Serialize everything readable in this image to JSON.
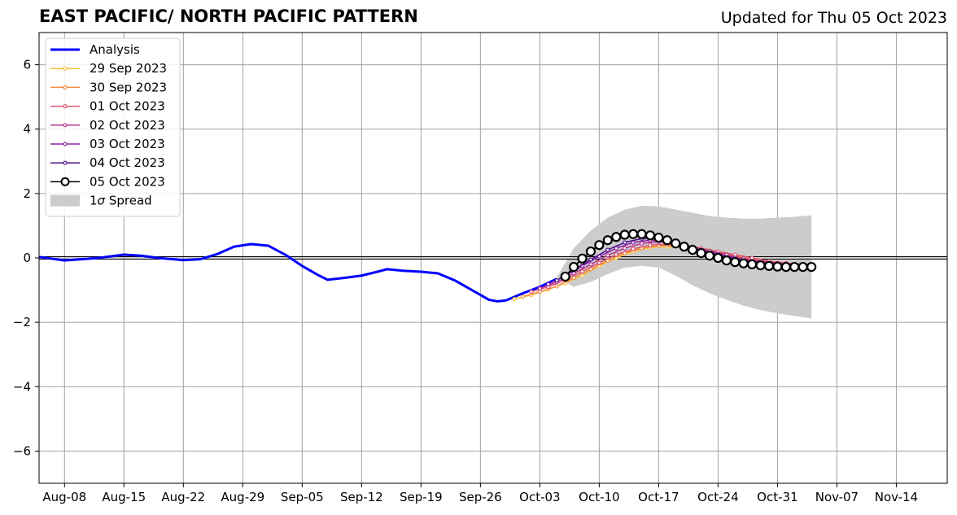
{
  "title": "EAST PACIFIC/ NORTH PACIFIC PATTERN",
  "updated": "Updated for Thu 05 Oct 2023",
  "chart_data": {
    "type": "line",
    "title": "EAST PACIFIC/ NORTH PACIFIC PATTERN",
    "xlabel": "",
    "ylabel": "",
    "x_range": [
      "2023-08-05",
      "2023-11-20"
    ],
    "ylim": [
      -7,
      7
    ],
    "x_ticks": [
      "Aug-08",
      "Aug-15",
      "Aug-22",
      "Aug-29",
      "Sep-05",
      "Sep-12",
      "Sep-19",
      "Sep-26",
      "Oct-03",
      "Oct-10",
      "Oct-17",
      "Oct-24",
      "Oct-31",
      "Nov-07",
      "Nov-14"
    ],
    "x_tick_dates": [
      "2023-08-08",
      "2023-08-15",
      "2023-08-22",
      "2023-08-29",
      "2023-09-05",
      "2023-09-12",
      "2023-09-19",
      "2023-09-26",
      "2023-10-03",
      "2023-10-10",
      "2023-10-17",
      "2023-10-24",
      "2023-10-31",
      "2023-11-07",
      "2023-11-14"
    ],
    "y_ticks": [
      6,
      4,
      2,
      0,
      -2,
      -4,
      -6
    ],
    "y_tick_labels": [
      "6",
      "4",
      "2",
      "0",
      "−2",
      "−4",
      "−6"
    ],
    "grid": true,
    "legend_position": "top-left",
    "series": [
      {
        "name": "Analysis",
        "color": "#0000ff",
        "marker": "none",
        "x": [
          "2023-08-05",
          "2023-08-08",
          "2023-08-10",
          "2023-08-12",
          "2023-08-15",
          "2023-08-17",
          "2023-08-19",
          "2023-08-22",
          "2023-08-24",
          "2023-08-26",
          "2023-08-28",
          "2023-08-30",
          "2023-09-01",
          "2023-09-03",
          "2023-09-05",
          "2023-09-07",
          "2023-09-08",
          "2023-09-10",
          "2023-09-12",
          "2023-09-14",
          "2023-09-15",
          "2023-09-17",
          "2023-09-19",
          "2023-09-21",
          "2023-09-23",
          "2023-09-25",
          "2023-09-27",
          "2023-09-28",
          "2023-09-29",
          "2023-10-01",
          "2023-10-03",
          "2023-10-05"
        ],
        "values": [
          0.03,
          -0.08,
          -0.04,
          0.0,
          0.1,
          0.07,
          0.0,
          -0.07,
          -0.04,
          0.12,
          0.35,
          0.43,
          0.38,
          0.1,
          -0.25,
          -0.55,
          -0.68,
          -0.62,
          -0.55,
          -0.42,
          -0.35,
          -0.4,
          -0.43,
          -0.48,
          -0.7,
          -1.0,
          -1.3,
          -1.35,
          -1.32,
          -1.1,
          -0.9,
          -0.65
        ]
      },
      {
        "name": "29 Sep 2023",
        "color": "#fbbd3a",
        "marker": "small",
        "x": [
          "2023-09-30",
          "2023-10-02",
          "2023-10-04",
          "2023-10-06",
          "2023-10-08",
          "2023-10-10",
          "2023-10-12",
          "2023-10-14",
          "2023-10-16",
          "2023-10-18",
          "2023-10-20",
          "2023-10-22",
          "2023-10-24",
          "2023-10-26",
          "2023-10-28",
          "2023-10-30",
          "2023-11-01"
        ],
        "values": [
          -1.28,
          -1.15,
          -0.98,
          -0.78,
          -0.55,
          -0.25,
          0.0,
          0.2,
          0.32,
          0.35,
          0.32,
          0.25,
          0.15,
          0.05,
          -0.05,
          -0.12,
          -0.18
        ]
      },
      {
        "name": "30 Sep 2023",
        "color": "#f58a3b",
        "marker": "small",
        "x": [
          "2023-10-01",
          "2023-10-03",
          "2023-10-05",
          "2023-10-07",
          "2023-10-09",
          "2023-10-11",
          "2023-10-13",
          "2023-10-15",
          "2023-10-17",
          "2023-10-19",
          "2023-10-21",
          "2023-10-23",
          "2023-10-25",
          "2023-10-27",
          "2023-10-29",
          "2023-10-31",
          "2023-11-02"
        ],
        "values": [
          -1.2,
          -1.05,
          -0.88,
          -0.62,
          -0.35,
          -0.08,
          0.15,
          0.3,
          0.38,
          0.38,
          0.32,
          0.23,
          0.12,
          0.02,
          -0.08,
          -0.15,
          -0.2
        ]
      },
      {
        "name": "01 Oct 2023",
        "color": "#e05470",
        "marker": "small",
        "x": [
          "2023-10-02",
          "2023-10-04",
          "2023-10-06",
          "2023-10-08",
          "2023-10-10",
          "2023-10-12",
          "2023-10-14",
          "2023-10-16",
          "2023-10-18",
          "2023-10-20",
          "2023-10-22",
          "2023-10-24",
          "2023-10-26",
          "2023-10-28",
          "2023-10-30",
          "2023-11-01",
          "2023-11-03"
        ],
        "values": [
          -1.05,
          -0.9,
          -0.68,
          -0.42,
          -0.15,
          0.1,
          0.28,
          0.4,
          0.42,
          0.38,
          0.3,
          0.2,
          0.1,
          0.0,
          -0.1,
          -0.16,
          -0.2
        ]
      },
      {
        "name": "02 Oct 2023",
        "color": "#b8358e",
        "marker": "small",
        "x": [
          "2023-10-03",
          "2023-10-05",
          "2023-10-07",
          "2023-10-09",
          "2023-10-11",
          "2023-10-13",
          "2023-10-15",
          "2023-10-17",
          "2023-10-19",
          "2023-10-21",
          "2023-10-23",
          "2023-10-25",
          "2023-10-27",
          "2023-10-29",
          "2023-10-31",
          "2023-11-02"
        ],
        "values": [
          -0.95,
          -0.75,
          -0.48,
          -0.2,
          0.08,
          0.3,
          0.45,
          0.5,
          0.45,
          0.35,
          0.22,
          0.1,
          -0.02,
          -0.1,
          -0.16,
          -0.2
        ]
      },
      {
        "name": "03 Oct 2023",
        "color": "#8a1fa6",
        "marker": "small",
        "x": [
          "2023-10-04",
          "2023-10-06",
          "2023-10-08",
          "2023-10-10",
          "2023-10-12",
          "2023-10-14",
          "2023-10-16",
          "2023-10-18",
          "2023-10-20",
          "2023-10-22",
          "2023-10-24",
          "2023-10-26",
          "2023-10-28",
          "2023-10-30",
          "2023-11-01",
          "2023-11-03"
        ],
        "values": [
          -0.82,
          -0.55,
          -0.25,
          0.05,
          0.3,
          0.48,
          0.55,
          0.5,
          0.38,
          0.25,
          0.12,
          0.0,
          -0.1,
          -0.16,
          -0.2,
          -0.22
        ]
      },
      {
        "name": "04 Oct 2023",
        "color": "#4b0c8a",
        "marker": "small",
        "x": [
          "2023-10-05",
          "2023-10-07",
          "2023-10-09",
          "2023-10-11",
          "2023-10-13",
          "2023-10-15",
          "2023-10-17",
          "2023-10-19",
          "2023-10-21",
          "2023-10-23",
          "2023-10-25",
          "2023-10-27",
          "2023-10-29",
          "2023-10-31",
          "2023-11-02"
        ],
        "values": [
          -0.7,
          -0.38,
          -0.05,
          0.25,
          0.48,
          0.6,
          0.58,
          0.45,
          0.3,
          0.15,
          0.02,
          -0.1,
          -0.17,
          -0.22,
          -0.24
        ]
      },
      {
        "name": "05 Oct 2023",
        "color": "#000000",
        "marker": "circle",
        "x": [
          "2023-10-06",
          "2023-10-07",
          "2023-10-08",
          "2023-10-09",
          "2023-10-10",
          "2023-10-11",
          "2023-10-12",
          "2023-10-13",
          "2023-10-14",
          "2023-10-15",
          "2023-10-16",
          "2023-10-17",
          "2023-10-18",
          "2023-10-19",
          "2023-10-20",
          "2023-10-21",
          "2023-10-22",
          "2023-10-23",
          "2023-10-24",
          "2023-10-25",
          "2023-10-26",
          "2023-10-27",
          "2023-10-28",
          "2023-10-29",
          "2023-10-30",
          "2023-10-31",
          "2023-11-01",
          "2023-11-02",
          "2023-11-03",
          "2023-11-04"
        ],
        "values": [
          -0.58,
          -0.28,
          -0.02,
          0.2,
          0.4,
          0.55,
          0.65,
          0.72,
          0.74,
          0.74,
          0.7,
          0.63,
          0.55,
          0.45,
          0.35,
          0.25,
          0.15,
          0.07,
          0.0,
          -0.08,
          -0.13,
          -0.17,
          -0.2,
          -0.23,
          -0.25,
          -0.27,
          -0.28,
          -0.28,
          -0.28,
          -0.28
        ]
      }
    ],
    "spread": {
      "name": "1σ Spread",
      "color": "#cccccc",
      "x": [
        "2023-10-05",
        "2023-10-07",
        "2023-10-09",
        "2023-10-11",
        "2023-10-13",
        "2023-10-15",
        "2023-10-17",
        "2023-10-19",
        "2023-10-21",
        "2023-10-23",
        "2023-10-25",
        "2023-10-27",
        "2023-10-29",
        "2023-10-31",
        "2023-11-02",
        "2023-11-04"
      ],
      "upper": [
        -0.6,
        0.3,
        0.85,
        1.25,
        1.5,
        1.62,
        1.6,
        1.5,
        1.4,
        1.3,
        1.25,
        1.22,
        1.22,
        1.25,
        1.28,
        1.32
      ],
      "lower": [
        -0.6,
        -0.9,
        -0.75,
        -0.5,
        -0.3,
        -0.25,
        -0.3,
        -0.55,
        -0.85,
        -1.1,
        -1.3,
        -1.48,
        -1.62,
        -1.72,
        -1.8,
        -1.88
      ]
    },
    "legend": {
      "entries": [
        "Analysis",
        "29 Sep 2023",
        "30 Sep 2023",
        "01 Oct 2023",
        "02 Oct 2023",
        "03 Oct 2023",
        "04 Oct 2023",
        "05 Oct 2023",
        "1σ Spread"
      ],
      "spread_label_prefix": "1",
      "spread_label_sigma": "σ",
      "spread_label_suffix": " Spread"
    }
  }
}
